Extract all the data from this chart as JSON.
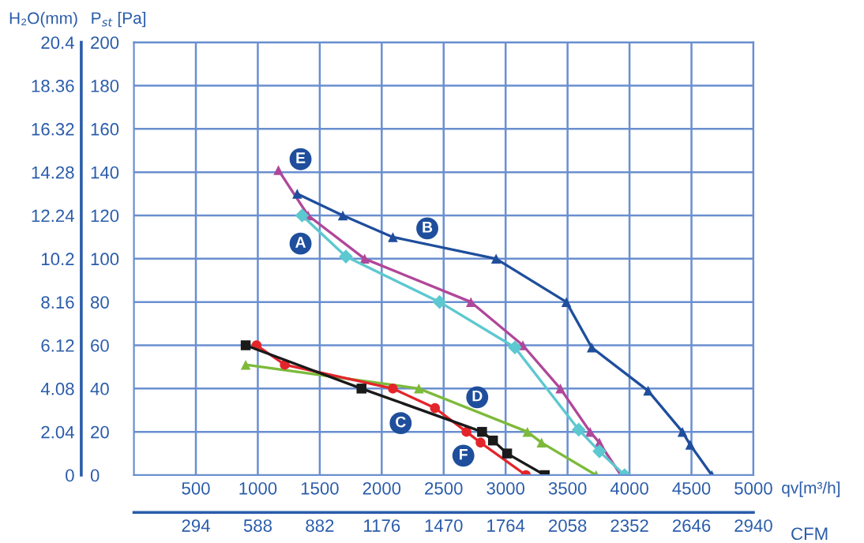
{
  "chart_data": {
    "type": "line",
    "xlabel": "qv[m³/h]",
    "x2label": "CFM",
    "ylabel": "P$_{st}$ [Pa]",
    "y2label": "H₂O(mm)",
    "xlim": [
      0,
      5000
    ],
    "xticks": [
      500,
      1000,
      1500,
      2000,
      2500,
      3000,
      3500,
      4000,
      4500,
      5000
    ],
    "x2lim": [
      0,
      2940
    ],
    "x2ticks": [
      294,
      588,
      882,
      1176,
      1470,
      1764,
      2058,
      2352,
      2646,
      2940
    ],
    "ylim": [
      0,
      200
    ],
    "yticks": [
      0,
      20,
      40,
      60,
      80,
      100,
      120,
      140,
      160,
      180,
      200
    ],
    "y2lim": [
      0,
      20.4
    ],
    "y2ticks": [
      0,
      2.04,
      4.08,
      6.12,
      8.16,
      10.2,
      12.24,
      14.28,
      16.32,
      18.36,
      20.4
    ],
    "grid": true,
    "legend": false,
    "line_style": "solid",
    "series": [
      {
        "color": "#b0479a",
        "marker": "triangle",
        "x": [
          1166,
          1406,
          1862,
          2720,
          3139,
          3442,
          3682,
          3757,
          3930
        ],
        "values": [
          141,
          120,
          100,
          80,
          60,
          40,
          20,
          15,
          0
        ]
      },
      {
        "color": "#5cc8d0",
        "marker": "diamond",
        "x": [
          1357,
          1711,
          2467,
          3075,
          3590,
          3757,
          3960
        ],
        "values": [
          120,
          101,
          80,
          59,
          21,
          11,
          0
        ]
      },
      {
        "color": "#1f4e9c",
        "marker": "triangle",
        "x": [
          1318,
          1686,
          2090,
          2923,
          3490,
          3695,
          4150,
          4427,
          4490,
          4664
        ],
        "values": [
          130,
          120,
          110,
          100,
          80,
          59,
          39,
          20,
          14,
          0
        ]
      },
      {
        "color": "#7dba3a",
        "marker": "triangle",
        "x": [
          902,
          2300,
          3176,
          3290,
          3730
        ],
        "values": [
          51,
          40,
          20,
          15,
          0
        ]
      },
      {
        "color": "#e3252b",
        "marker": "circle",
        "x": [
          990,
          1218,
          2090,
          2430,
          2684,
          2798,
          3164
        ],
        "values": [
          60,
          51,
          40,
          31,
          20,
          15,
          0
        ]
      },
      {
        "color": "#1a1a1a",
        "marker": "square",
        "x": [
          902,
          1837,
          2810,
          2898,
          3012,
          3316
        ],
        "values": [
          60,
          40,
          20,
          16,
          10,
          0
        ]
      }
    ],
    "annotations": [
      {
        "text": "E",
        "x": 1345,
        "y": 146
      },
      {
        "text": "B",
        "x": 2368,
        "y": 114
      },
      {
        "text": "A",
        "x": 1345,
        "y": 107
      },
      {
        "text": "D",
        "x": 2771,
        "y": 36
      },
      {
        "text": "C",
        "x": 2153,
        "y": 24
      },
      {
        "text": "F",
        "x": 2659,
        "y": 9
      }
    ]
  }
}
